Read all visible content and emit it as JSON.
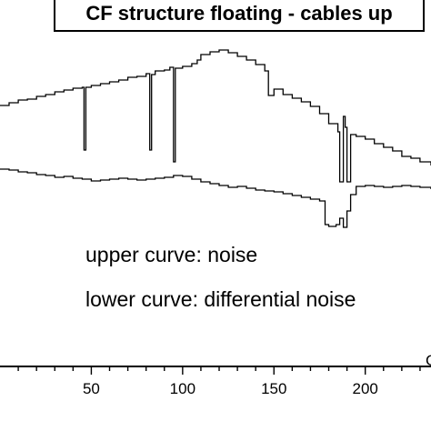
{
  "chart_data": {
    "type": "line",
    "title": "CF structure floating - cables up",
    "xlabel": "C",
    "annotations": {
      "upper": "upper curve: noise",
      "lower": "lower curve: differential noise"
    },
    "x_ticks": [
      50,
      100,
      150,
      200
    ],
    "xlim": [
      0,
      236
    ],
    "ylim": [
      0,
      474
    ],
    "series": [
      {
        "points": [
          [
            0,
            116
          ],
          [
            5,
            113
          ],
          [
            10,
            110
          ],
          [
            15,
            109
          ],
          [
            20,
            106
          ],
          [
            25,
            104
          ],
          [
            30,
            101
          ],
          [
            35,
            99
          ],
          [
            40,
            97
          ],
          [
            45,
            96
          ],
          [
            46,
            165
          ],
          [
            47,
            96
          ],
          [
            50,
            94
          ],
          [
            55,
            92
          ],
          [
            60,
            90
          ],
          [
            65,
            88
          ],
          [
            70,
            85
          ],
          [
            75,
            84
          ],
          [
            80,
            81
          ],
          [
            82,
            165
          ],
          [
            83,
            82
          ],
          [
            85,
            78
          ],
          [
            90,
            77
          ],
          [
            93,
            74
          ],
          [
            95,
            178
          ],
          [
            96,
            75
          ],
          [
            100,
            73
          ],
          [
            105,
            70
          ],
          [
            108,
            66
          ],
          [
            110,
            60
          ],
          [
            115,
            57
          ],
          [
            120,
            55
          ],
          [
            125,
            58
          ],
          [
            130,
            62
          ],
          [
            135,
            66
          ],
          [
            140,
            71
          ],
          [
            145,
            78
          ],
          [
            147,
            105
          ],
          [
            150,
            98
          ],
          [
            155,
            104
          ],
          [
            160,
            108
          ],
          [
            165,
            112
          ],
          [
            170,
            117
          ],
          [
            175,
            125
          ],
          [
            180,
            136
          ],
          [
            185,
            145
          ],
          [
            186,
            200
          ],
          [
            188,
            128
          ],
          [
            189,
            140
          ],
          [
            190,
            200
          ],
          [
            192,
            148
          ],
          [
            195,
            150
          ],
          [
            200,
            153
          ],
          [
            205,
            158
          ],
          [
            210,
            162
          ],
          [
            215,
            166
          ],
          [
            220,
            172
          ],
          [
            225,
            174
          ],
          [
            230,
            178
          ],
          [
            236,
            182
          ]
        ]
      },
      {
        "points": [
          [
            0,
            186
          ],
          [
            5,
            187
          ],
          [
            10,
            189
          ],
          [
            15,
            190
          ],
          [
            20,
            192
          ],
          [
            25,
            193
          ],
          [
            30,
            195
          ],
          [
            35,
            194
          ],
          [
            40,
            196
          ],
          [
            45,
            197
          ],
          [
            50,
            199
          ],
          [
            55,
            198
          ],
          [
            60,
            197
          ],
          [
            65,
            196
          ],
          [
            70,
            197
          ],
          [
            75,
            198
          ],
          [
            80,
            197
          ],
          [
            85,
            196
          ],
          [
            90,
            195
          ],
          [
            95,
            193
          ],
          [
            100,
            194
          ],
          [
            105,
            197
          ],
          [
            110,
            200
          ],
          [
            115,
            202
          ],
          [
            120,
            204
          ],
          [
            125,
            206
          ],
          [
            130,
            205
          ],
          [
            135,
            207
          ],
          [
            140,
            209
          ],
          [
            145,
            210
          ],
          [
            150,
            211
          ],
          [
            155,
            213
          ],
          [
            160,
            215
          ],
          [
            165,
            217
          ],
          [
            170,
            219
          ],
          [
            175,
            221
          ],
          [
            178,
            247
          ],
          [
            180,
            249
          ],
          [
            184,
            247
          ],
          [
            186,
            240
          ],
          [
            188,
            250
          ],
          [
            190,
            232
          ],
          [
            192,
            214
          ],
          [
            195,
            205
          ],
          [
            200,
            204
          ],
          [
            205,
            205
          ],
          [
            210,
            206
          ],
          [
            215,
            205
          ],
          [
            220,
            204
          ],
          [
            225,
            205
          ],
          [
            230,
            206
          ],
          [
            236,
            208
          ]
        ]
      }
    ]
  }
}
